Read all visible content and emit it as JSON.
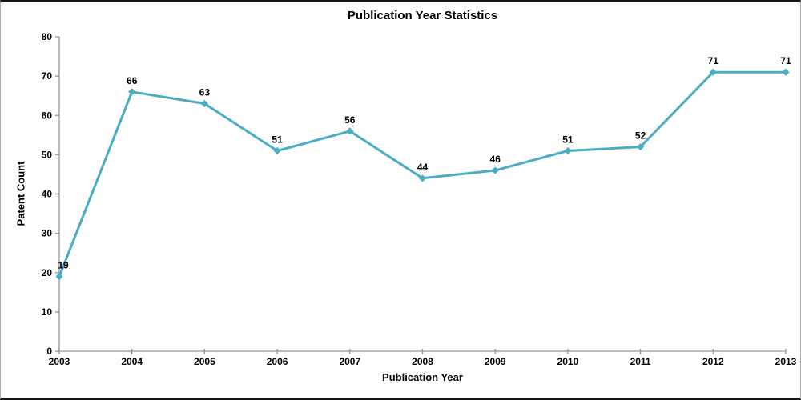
{
  "chart_data": {
    "type": "line",
    "title": "Publication Year Statistics",
    "xlabel": "Publication Year",
    "ylabel": "Patent Count",
    "categories": [
      "2003",
      "2004",
      "2005",
      "2006",
      "2007",
      "2008",
      "2009",
      "2010",
      "2011",
      "2012",
      "2013"
    ],
    "values": [
      19,
      66,
      63,
      51,
      56,
      44,
      46,
      51,
      52,
      71,
      71
    ],
    "data_labels": [
      19,
      66,
      63,
      51,
      56,
      44,
      46,
      51,
      52,
      71,
      71
    ],
    "ylim": [
      0,
      80
    ],
    "yticks": [
      0,
      10,
      20,
      30,
      40,
      50,
      60,
      70,
      80
    ],
    "grid": false,
    "legend": "none",
    "marker": "diamond",
    "colors": {
      "line": "#4BACC6",
      "marker": "#4BACC6",
      "axis": "#969696",
      "text": "#000000",
      "background": "#ffffff"
    }
  }
}
